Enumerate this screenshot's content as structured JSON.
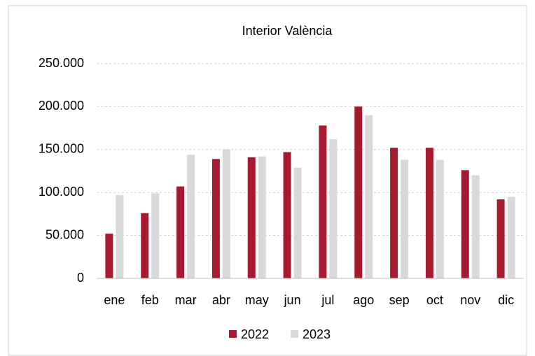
{
  "chart_data": {
    "type": "bar",
    "title": "Interior València",
    "categories": [
      "ene",
      "feb",
      "mar",
      "abr",
      "may",
      "jun",
      "jul",
      "ago",
      "sep",
      "oct",
      "nov",
      "dic"
    ],
    "series": [
      {
        "name": "2022",
        "color": "#a6192e",
        "values": [
          52000,
          76000,
          107000,
          139000,
          141000,
          147000,
          178000,
          200000,
          152000,
          152000,
          126000,
          92000
        ]
      },
      {
        "name": "2023",
        "color": "#d9d9d9",
        "values": [
          97000,
          99000,
          144000,
          150000,
          142000,
          129000,
          162000,
          190000,
          138000,
          138000,
          120000,
          95000
        ]
      }
    ],
    "ylim": [
      0,
      250000
    ],
    "yticks": [
      0,
      {
        "value": 50000,
        "label": "50.000"
      },
      {
        "value": 100000,
        "label": "100.000"
      },
      {
        "value": 150000,
        "label": "150.000"
      },
      {
        "value": 200000,
        "label": "200.000"
      },
      {
        "value": 250000,
        "label": "250.000"
      }
    ],
    "grid": true,
    "legend": "bottom"
  }
}
